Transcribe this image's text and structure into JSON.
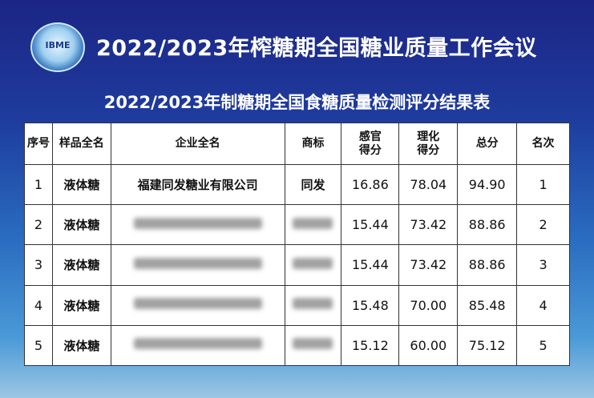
{
  "logo": {
    "text": "IBME"
  },
  "title": "2022/2023年榨糖期全国糖业质量工作会议",
  "subtitle": "2022/2023年制糖期全国食糖质量检测评分结果表",
  "table": {
    "headers": [
      "序号",
      "样品全名",
      "企业全名",
      "商标",
      "感官\n得分",
      "理化\n得分",
      "总分",
      "名次"
    ],
    "rows": [
      {
        "no": "1",
        "sample": "液体糖",
        "company": "福建同发糖业有限公司",
        "brand": "同发",
        "sensory": "16.86",
        "physchem": "78.04",
        "total": "94.90",
        "rank": "1"
      },
      {
        "no": "2",
        "sample": "液体糖",
        "company": "",
        "brand": "",
        "sensory": "15.44",
        "physchem": "73.42",
        "total": "88.86",
        "rank": "2"
      },
      {
        "no": "3",
        "sample": "液体糖",
        "company": "",
        "brand": "",
        "sensory": "15.44",
        "physchem": "73.42",
        "total": "88.86",
        "rank": "3"
      },
      {
        "no": "4",
        "sample": "液体糖",
        "company": "",
        "brand": "",
        "sensory": "15.48",
        "physchem": "70.00",
        "total": "85.48",
        "rank": "4"
      },
      {
        "no": "5",
        "sample": "液体糖",
        "company": "",
        "brand": "",
        "sensory": "15.12",
        "physchem": "60.00",
        "total": "75.12",
        "rank": "5"
      }
    ]
  }
}
